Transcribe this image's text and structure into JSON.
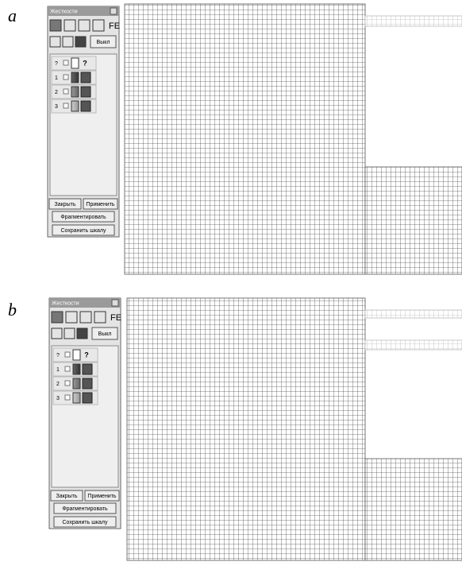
{
  "panels": [
    {
      "label": "a",
      "window": {
        "title": "Жесткости",
        "toolbar": [
          "FE",
          "Выкл"
        ],
        "rows": [
          {
            "num": "?",
            "mark": "?"
          },
          {
            "num": "1"
          },
          {
            "num": "2"
          },
          {
            "num": "3"
          }
        ],
        "buttons": [
          "Закрыть",
          "Применить",
          "Фрагментировать",
          "Сохранить шкалу"
        ]
      }
    },
    {
      "label": "b",
      "window": {
        "title": "Жесткости",
        "toolbar": [
          "FE",
          "Выкл"
        ],
        "rows": [
          {
            "num": "?",
            "mark": "?"
          },
          {
            "num": "1"
          },
          {
            "num": "2"
          },
          {
            "num": "3"
          }
        ],
        "buttons": [
          "Закрыть",
          "Применить",
          "Фрагментировать",
          "Сохранить шкалу"
        ]
      }
    }
  ]
}
